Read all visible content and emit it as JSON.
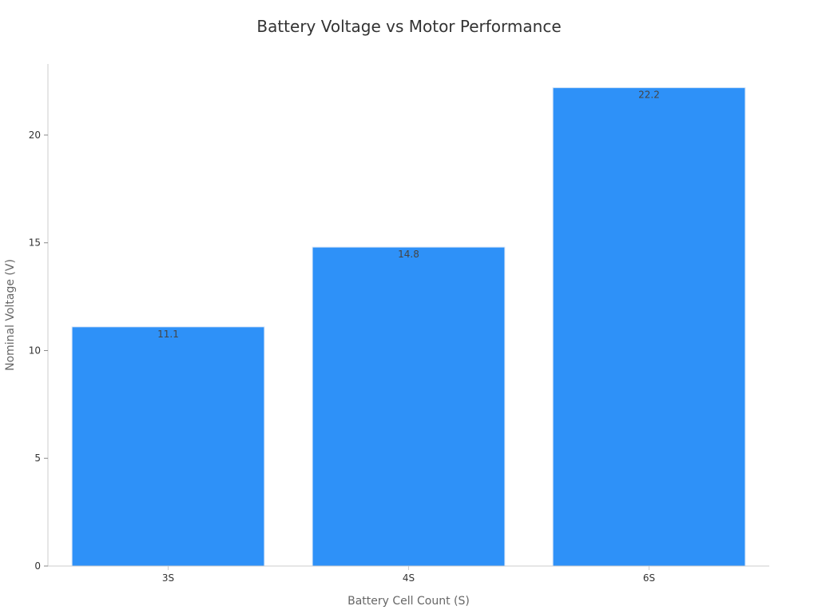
{
  "chart_data": {
    "type": "bar",
    "title": "Battery Voltage vs Motor Performance",
    "xlabel": "Battery Cell Count (S)",
    "ylabel": "Nominal Voltage (V)",
    "categories": [
      "3S",
      "4S",
      "6S"
    ],
    "values": [
      11.1,
      14.8,
      22.2
    ],
    "data_labels": [
      "11.1",
      "14.8",
      "22.2"
    ],
    "ylim": [
      0,
      23.3
    ],
    "yticks": [
      0,
      5,
      10,
      15,
      20
    ],
    "ytick_labels": [
      "0",
      "5",
      "10",
      "15",
      "20"
    ],
    "grid": false,
    "bar_color": "#2e91f8",
    "bar_edge_color": "#d9e6f7",
    "axis_color": "#cccccc"
  }
}
